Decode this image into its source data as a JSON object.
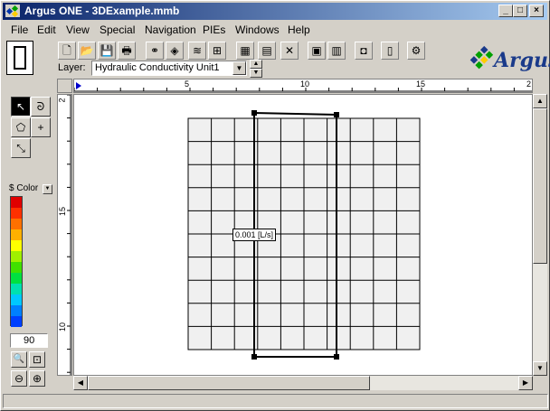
{
  "window": {
    "title": "Argus ONE - 3DExample.mmb",
    "buttons": {
      "minimize": "_",
      "maximize": "□",
      "close": "×"
    }
  },
  "menu": {
    "items": [
      {
        "label": "File"
      },
      {
        "label": "Edit"
      },
      {
        "label": "View"
      },
      {
        "label": "Special"
      },
      {
        "label": "Navigation"
      },
      {
        "label": "PIEs"
      },
      {
        "label": "Windows"
      },
      {
        "label": "Help"
      }
    ]
  },
  "toolbar": {
    "buttons": [
      {
        "icon": "new-file-icon",
        "glyph": "🗋"
      },
      {
        "icon": "open-folder-icon",
        "glyph": "📂"
      },
      {
        "icon": "save-icon",
        "glyph": "💾"
      },
      {
        "icon": "print-icon",
        "glyph": "🖶"
      },
      {
        "icon": "find-icon",
        "glyph": "⚭"
      },
      {
        "icon": "object-icon",
        "glyph": "◈"
      },
      {
        "icon": "layers-icon",
        "glyph": "≋"
      },
      {
        "icon": "grid-icon",
        "glyph": "⊞"
      },
      {
        "icon": "mesh-icon",
        "glyph": "▦"
      },
      {
        "icon": "table-icon",
        "glyph": "▤"
      },
      {
        "icon": "xyz-icon",
        "glyph": "✕"
      },
      {
        "icon": "book-icon",
        "glyph": "▣"
      },
      {
        "icon": "notes-icon",
        "glyph": "▥"
      },
      {
        "icon": "camera-icon",
        "glyph": "◘"
      },
      {
        "icon": "help-book-icon",
        "glyph": "▯"
      },
      {
        "icon": "plugin-icon",
        "glyph": "⚙"
      }
    ],
    "layer_label": "Layer:",
    "layer_value": "Hydraulic Conductivity Unit1"
  },
  "logo": {
    "text": "Argus"
  },
  "palette": {
    "tools": [
      {
        "name": "pointer-tool",
        "glyph": "↖"
      },
      {
        "name": "lasso-tool",
        "glyph": "ᘐ"
      },
      {
        "name": "polygon-tool",
        "glyph": "⬠"
      },
      {
        "name": "point-tool",
        "glyph": "+"
      },
      {
        "name": "move-tool",
        "glyph": "⤡"
      }
    ],
    "color_label": "Color",
    "color_prefix": "$",
    "colors": [
      "#e00000",
      "#ff3000",
      "#ff7000",
      "#ffb000",
      "#ffff00",
      "#a0f000",
      "#40e000",
      "#00e040",
      "#00e0b0",
      "#00c8ff",
      "#0080ff",
      "#0040ff"
    ],
    "zoom_value": "90",
    "zoom_buttons": [
      {
        "name": "zoom-icon",
        "glyph": "🔍"
      },
      {
        "name": "zoom-extent-icon",
        "glyph": "⊡"
      },
      {
        "name": "zoom-out-icon",
        "glyph": "⊖"
      },
      {
        "name": "zoom-in-icon",
        "glyph": "⊕"
      }
    ]
  },
  "ruler_h": {
    "labels": [
      "5",
      "10",
      "15",
      "2"
    ]
  },
  "ruler_v": {
    "labels": [
      "2",
      "15",
      "10"
    ]
  },
  "canvas": {
    "grid_cols": 10,
    "grid_rows": 10,
    "value_label": "0.001 [L/s]"
  }
}
